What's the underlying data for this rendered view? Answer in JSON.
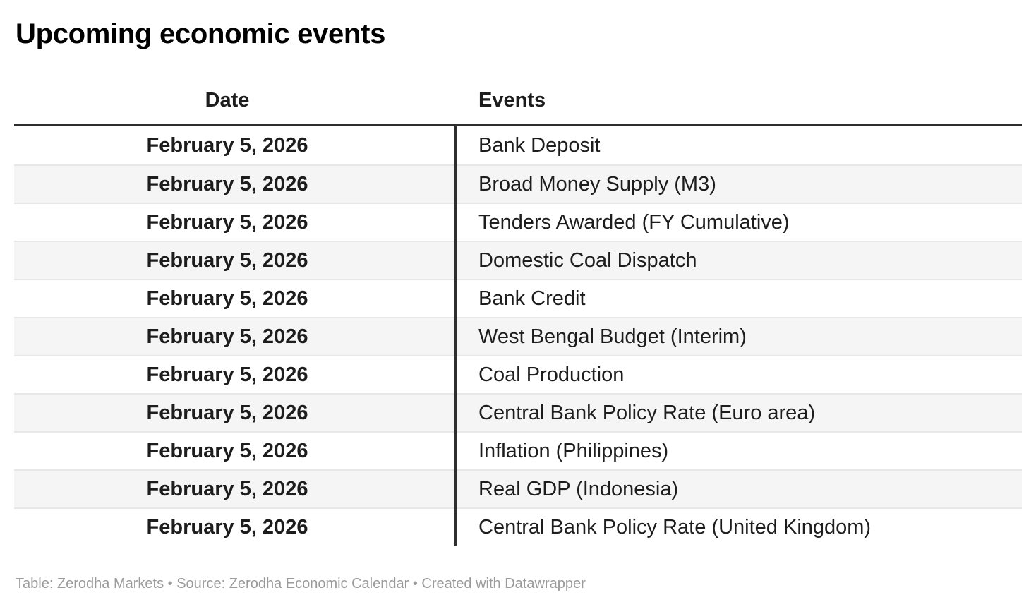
{
  "title": "Upcoming economic events",
  "header": {
    "date_label": "Date",
    "events_label": "Events"
  },
  "chart_data": {
    "type": "table",
    "title": "Upcoming economic events",
    "columns": [
      "Date",
      "Events"
    ],
    "rows": [
      {
        "date": "February 5, 2026",
        "event": "Bank Deposit"
      },
      {
        "date": "February 5, 2026",
        "event": "Broad Money Supply (M3)"
      },
      {
        "date": "February 5, 2026",
        "event": "Tenders Awarded (FY Cumulative)"
      },
      {
        "date": "February 5, 2026",
        "event": "Domestic Coal Dispatch"
      },
      {
        "date": "February 5, 2026",
        "event": "Bank Credit"
      },
      {
        "date": "February 5, 2026",
        "event": "West Bengal Budget (Interim)"
      },
      {
        "date": "February 5, 2026",
        "event": "Coal Production"
      },
      {
        "date": "February 5, 2026",
        "event": "Central Bank Policy Rate (Euro area)"
      },
      {
        "date": "February 5, 2026",
        "event": "Inflation (Philippines)"
      },
      {
        "date": "February 5, 2026",
        "event": "Real GDP (Indonesia)"
      },
      {
        "date": "February 5, 2026",
        "event": "Central Bank Policy Rate (United Kingdom)"
      }
    ],
    "layout": {
      "striped": true,
      "date_column_align": "center",
      "events_column_align": "left",
      "header_rule": true,
      "column_divider": true
    }
  },
  "footer": {
    "text": "Table: Zerodha Markets • Source: Zerodha Economic Calendar • Created with Datawrapper"
  },
  "colors": {
    "rule": "#2e2e2e",
    "stripe": "#f5f5f5",
    "separator": "#e7e7e7",
    "footer_text": "#9a9a9a",
    "body_text": "#1d1d1d",
    "title_text": "#000000"
  }
}
